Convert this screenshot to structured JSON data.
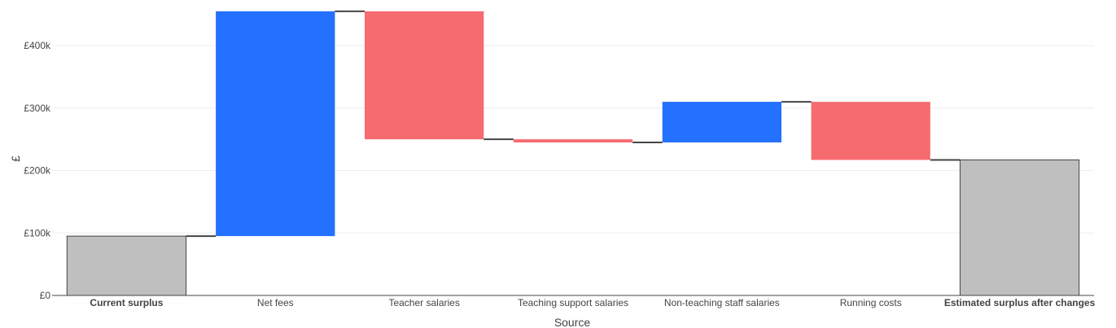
{
  "chart_data": {
    "type": "waterfall",
    "xlabel": "Source",
    "ylabel": "£",
    "ylim": [
      0,
      460000
    ],
    "yticks": [
      {
        "value": 0,
        "label": "£0"
      },
      {
        "value": 100000,
        "label": "£100k"
      },
      {
        "value": 200000,
        "label": "£200k"
      },
      {
        "value": 300000,
        "label": "£300k"
      },
      {
        "value": 400000,
        "label": "£400k"
      }
    ],
    "grid": true,
    "colors": {
      "increase": "#2470FF",
      "decrease": "#F56B70",
      "total": "#BFBFBF",
      "connector": "#444444",
      "grid": "#EEEEEE"
    },
    "steps": [
      {
        "label": "Current surplus",
        "measure": "total",
        "value": 95000,
        "bold": true
      },
      {
        "label": "Net fees",
        "measure": "relative",
        "value": 360000,
        "bold": false
      },
      {
        "label": "Teacher salaries",
        "measure": "relative",
        "value": -205000,
        "bold": false
      },
      {
        "label": "Teaching support salaries",
        "measure": "relative",
        "value": -5000,
        "bold": false
      },
      {
        "label": "Non-teaching staff salaries",
        "measure": "relative",
        "value": 65000,
        "bold": false
      },
      {
        "label": "Running costs",
        "measure": "relative",
        "value": -93000,
        "bold": false
      },
      {
        "label": "Estimated surplus after changes",
        "measure": "total",
        "value": 217000,
        "bold": true
      }
    ]
  }
}
